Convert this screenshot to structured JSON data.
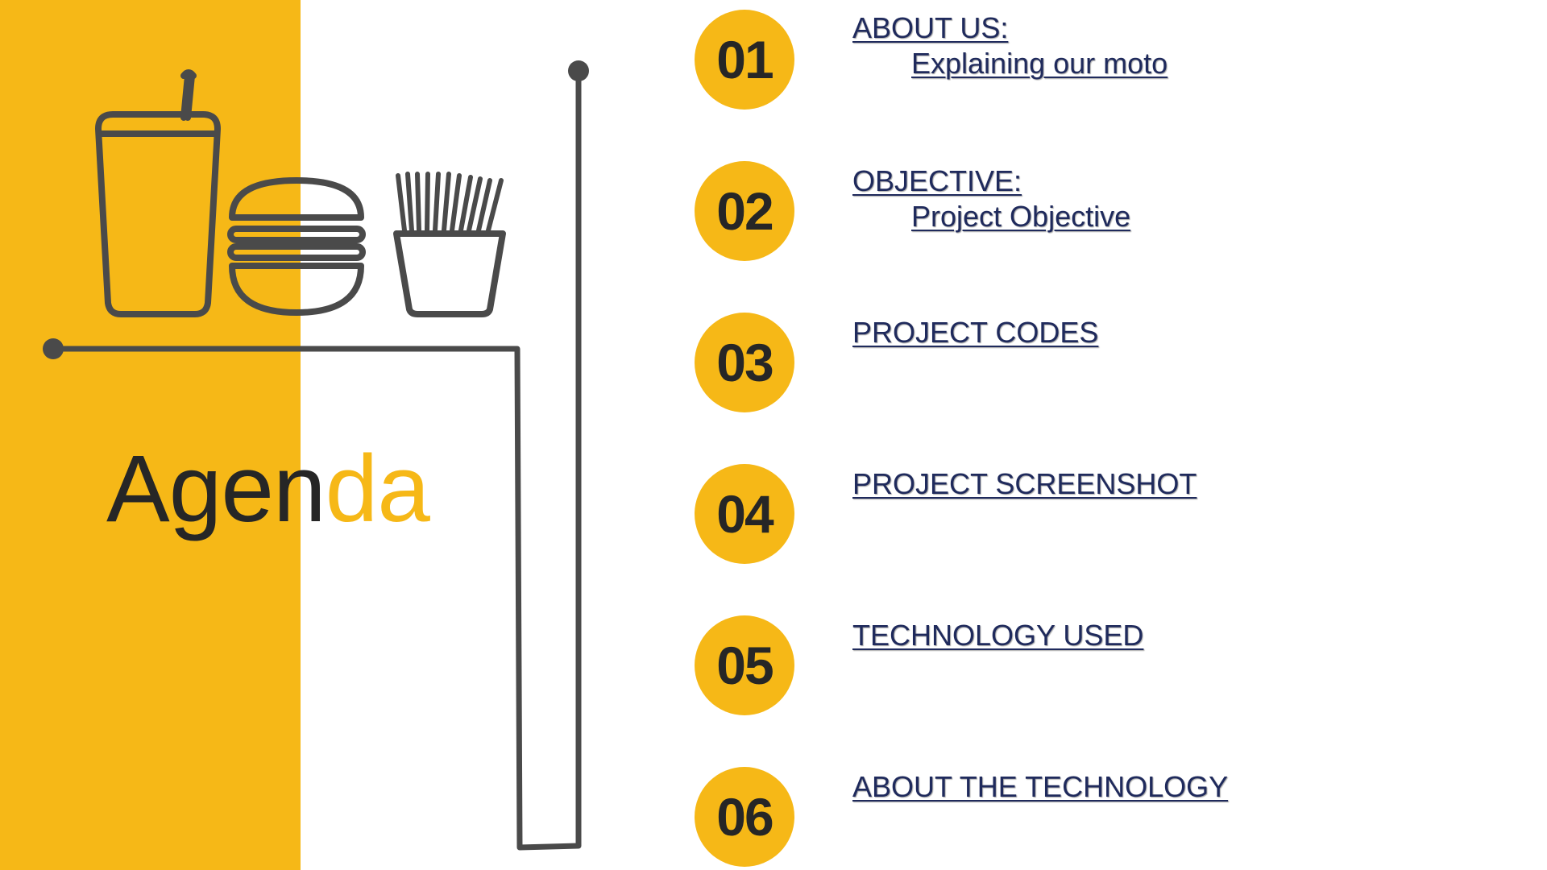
{
  "colors": {
    "accent": "#F6B817",
    "line": "#4a4a4a",
    "title_dark": "#262626",
    "link": "#1f2a5c"
  },
  "title": {
    "part1": "Agen",
    "part2": "da"
  },
  "icons": [
    "drink-cup-icon",
    "burger-icon",
    "fries-icon"
  ],
  "items": [
    {
      "number": "01",
      "title": "ABOUT US:",
      "subtitle": "Explaining our moto"
    },
    {
      "number": "02",
      "title": "OBJECTIVE:",
      "subtitle": "Project Objective"
    },
    {
      "number": "03",
      "title": "PROJECT CODES",
      "subtitle": ""
    },
    {
      "number": "04",
      "title": "PROJECT SCREENSHOT",
      "subtitle": ""
    },
    {
      "number": "05",
      "title": "TECHNOLOGY USED",
      "subtitle": ""
    },
    {
      "number": "06",
      "title": "ABOUT THE TECHNOLOGY",
      "subtitle": ""
    }
  ]
}
